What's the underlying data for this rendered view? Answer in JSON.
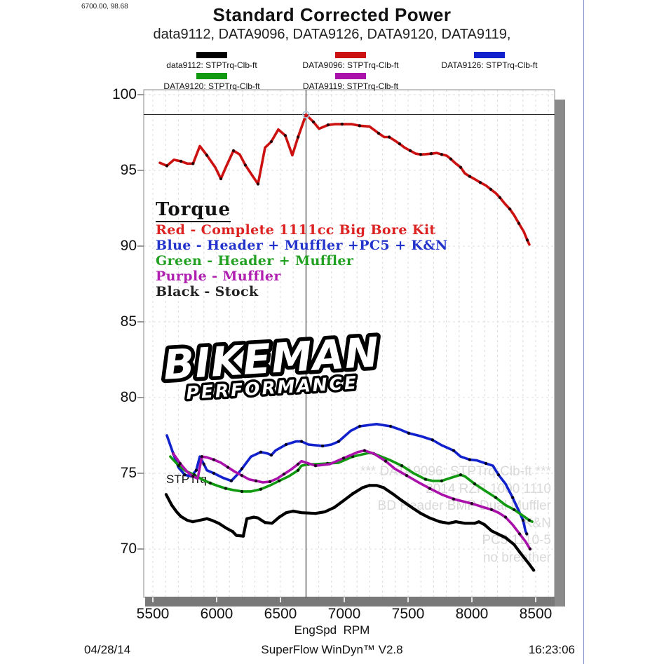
{
  "header": {
    "cursor_readout": "6700.00, 98.68",
    "title": "Standard Corrected Power",
    "subtitle": "data9112, DATA9096, DATA9126, DATA9120, DATA9119,"
  },
  "legend": {
    "items": [
      {
        "label": "data9112: STPTrq-Clb-ft",
        "color": "#000000"
      },
      {
        "label": "DATA9096: STPTrq-Clb-ft",
        "color": "#cc1111"
      },
      {
        "label": "DATA9126: STPTrq-Clb-ft",
        "color": "#1122cc"
      },
      {
        "label": "DATA9120: STPTrq-Clb-ft",
        "color": "#119911"
      },
      {
        "label": "DATA9119: STPTrq-Clb-ft",
        "color": "#aa11aa"
      }
    ]
  },
  "annotations": {
    "heading": "Torque",
    "lines": [
      {
        "label": "Red - Complete 1111cc Big Bore Kit",
        "color": "#dd2222"
      },
      {
        "label": "Blue - Header + Muffler +PC5 + K&N",
        "color": "#2233cc"
      },
      {
        "label": "Green - Header + Muffler",
        "color": "#22a022"
      },
      {
        "label": "Purple - Muffler",
        "color": "#b020b0"
      },
      {
        "label": "Black - Stock",
        "color": "#222222"
      }
    ]
  },
  "logo": {
    "line1": "BIKEMAN",
    "line2": "PERFORMANCE"
  },
  "series_label": "STPTrq",
  "watermark": {
    "lines": [
      "*** DATA9096: STPTrq-Clb-ft ***",
      "2014 RZR 1000 1110",
      "BD Header BMP Dual Muffler",
      "K&N",
      "PC5 1110-5",
      "no breather"
    ]
  },
  "footer": {
    "date": "04/28/14",
    "app": "SuperFlow WinDyn™ V2.8",
    "time": "16:23:06"
  },
  "chart_data": {
    "type": "line",
    "title": "Standard Corrected Power",
    "xlabel": "EngSpd  RPM",
    "ylabel": "STPTrq-Clb-ft",
    "xlim": [
      5430,
      8650
    ],
    "ylim": [
      66.8,
      100.3
    ],
    "x_ticks": [
      5500,
      6000,
      6500,
      7000,
      7500,
      8000,
      8500
    ],
    "y_ticks": [
      70,
      75,
      80,
      85,
      90,
      95,
      100
    ],
    "grid": true,
    "legend_position": "top",
    "crosshair": {
      "x": 6700,
      "y": 98.68
    },
    "series": [
      {
        "name": "DATA9096: STPTrq-Clb-ft",
        "color": "#cc1111",
        "marker_color": "#2a0000",
        "width": 3.6,
        "points": [
          [
            5555,
            95.5
          ],
          [
            5610,
            95.3
          ],
          [
            5665,
            95.7
          ],
          [
            5720,
            95.6
          ],
          [
            5770,
            95.45
          ],
          [
            5815,
            95.45
          ],
          [
            5868,
            96.6
          ],
          [
            5923,
            96.0
          ],
          [
            5989,
            95.2
          ],
          [
            6033,
            94.45
          ],
          [
            6077,
            95.3
          ],
          [
            6132,
            96.3
          ],
          [
            6181,
            96.05
          ],
          [
            6225,
            95.35
          ],
          [
            6280,
            94.65
          ],
          [
            6324,
            94.1
          ],
          [
            6379,
            96.5
          ],
          [
            6428,
            96.9
          ],
          [
            6483,
            97.7
          ],
          [
            6538,
            97.3
          ],
          [
            6593,
            96.0
          ],
          [
            6638,
            97.2
          ],
          [
            6700,
            98.68
          ],
          [
            6758,
            98.2
          ],
          [
            6802,
            97.75
          ],
          [
            6873,
            98.0
          ],
          [
            6928,
            98.05
          ],
          [
            6983,
            98.05
          ],
          [
            7060,
            98.05
          ],
          [
            7120,
            97.95
          ],
          [
            7198,
            97.9
          ],
          [
            7269,
            97.45
          ],
          [
            7313,
            97.2
          ],
          [
            7352,
            97.2
          ],
          [
            7390,
            97.0
          ],
          [
            7434,
            96.75
          ],
          [
            7473,
            96.5
          ],
          [
            7517,
            96.3
          ],
          [
            7560,
            96.1
          ],
          [
            7599,
            96.05
          ],
          [
            7637,
            96.07
          ],
          [
            7681,
            96.1
          ],
          [
            7725,
            96.15
          ],
          [
            7764,
            96.05
          ],
          [
            7802,
            95.97
          ],
          [
            7835,
            95.75
          ],
          [
            7874,
            95.45
          ],
          [
            7912,
            95.2
          ],
          [
            7945,
            94.8
          ],
          [
            7983,
            94.6
          ],
          [
            8027,
            94.4
          ],
          [
            8066,
            94.2
          ],
          [
            8110,
            94.0
          ],
          [
            8148,
            93.75
          ],
          [
            8187,
            93.5
          ],
          [
            8220,
            93.2
          ],
          [
            8258,
            92.8
          ],
          [
            8297,
            92.45
          ],
          [
            8330,
            92.05
          ],
          [
            8368,
            91.5
          ],
          [
            8407,
            90.95
          ],
          [
            8434,
            90.4
          ],
          [
            8450,
            90.1
          ]
        ]
      },
      {
        "name": "DATA9126: STPTrq-Clb-ft",
        "color": "#1122cc",
        "marker_color": "#000028",
        "width": 3.6,
        "points": [
          [
            5610,
            77.5
          ],
          [
            5660,
            76.3
          ],
          [
            5700,
            75.4
          ],
          [
            5750,
            74.9
          ],
          [
            5800,
            74.8
          ],
          [
            5840,
            75.2
          ],
          [
            5868,
            76.1
          ],
          [
            5900,
            75.6
          ],
          [
            5923,
            75.2
          ],
          [
            5978,
            75.0
          ],
          [
            6050,
            74.7
          ],
          [
            6115,
            74.5
          ],
          [
            6160,
            74.9
          ],
          [
            6198,
            75.3
          ],
          [
            6269,
            76.1
          ],
          [
            6346,
            76.4
          ],
          [
            6401,
            76.3
          ],
          [
            6428,
            76.2
          ],
          [
            6461,
            76.5
          ],
          [
            6544,
            76.9
          ],
          [
            6621,
            77.1
          ],
          [
            6665,
            77.1
          ],
          [
            6720,
            76.9
          ],
          [
            6830,
            76.8
          ],
          [
            6900,
            76.9
          ],
          [
            6956,
            77.1
          ],
          [
            7050,
            77.8
          ],
          [
            7121,
            78.1
          ],
          [
            7253,
            78.25
          ],
          [
            7363,
            78.1
          ],
          [
            7434,
            77.9
          ],
          [
            7505,
            77.65
          ],
          [
            7600,
            77.45
          ],
          [
            7692,
            77.2
          ],
          [
            7763,
            76.85
          ],
          [
            7857,
            76.5
          ],
          [
            7912,
            76.1
          ],
          [
            7983,
            75.9
          ],
          [
            8038,
            75.85
          ],
          [
            8110,
            75.65
          ],
          [
            8165,
            75.5
          ],
          [
            8209,
            74.9
          ],
          [
            8264,
            74.3
          ],
          [
            8319,
            73.4
          ],
          [
            8363,
            72.6
          ],
          [
            8401,
            71.9
          ],
          [
            8420,
            71.2
          ],
          [
            8430,
            71.0
          ]
        ]
      },
      {
        "name": "DATA9120: STPTrq-Clb-ft",
        "color": "#119911",
        "marker_color": "#002200",
        "width": 3.6,
        "points": [
          [
            5637,
            76.1
          ],
          [
            5703,
            75.5
          ],
          [
            5758,
            75.15
          ],
          [
            5824,
            74.9
          ],
          [
            5884,
            74.6
          ],
          [
            5950,
            74.35
          ],
          [
            6016,
            74.15
          ],
          [
            6071,
            74.0
          ],
          [
            6126,
            73.9
          ],
          [
            6198,
            73.8
          ],
          [
            6269,
            73.8
          ],
          [
            6346,
            73.95
          ],
          [
            6418,
            74.2
          ],
          [
            6490,
            74.5
          ],
          [
            6566,
            74.8
          ],
          [
            6638,
            75.2
          ],
          [
            6665,
            75.5
          ],
          [
            6720,
            75.6
          ],
          [
            6775,
            75.6
          ],
          [
            6868,
            75.65
          ],
          [
            6956,
            75.7
          ],
          [
            7066,
            76.1
          ],
          [
            7198,
            76.35
          ],
          [
            7231,
            76.3
          ],
          [
            7363,
            75.85
          ],
          [
            7451,
            75.5
          ],
          [
            7544,
            75.0
          ],
          [
            7637,
            74.6
          ],
          [
            7692,
            74.5
          ],
          [
            7763,
            74.5
          ],
          [
            7835,
            74.7
          ],
          [
            7912,
            74.9
          ],
          [
            7945,
            74.8
          ],
          [
            8022,
            74.3
          ],
          [
            8094,
            73.9
          ],
          [
            8187,
            73.4
          ],
          [
            8264,
            72.9
          ],
          [
            8330,
            72.6
          ],
          [
            8400,
            72.2
          ],
          [
            8450,
            71.9
          ],
          [
            8473,
            71.8
          ]
        ]
      },
      {
        "name": "DATA9119: STPTrq-Clb-ft",
        "color": "#aa11aa",
        "marker_color": "#260026",
        "width": 3.6,
        "points": [
          [
            5660,
            76.3
          ],
          [
            5714,
            75.65
          ],
          [
            5769,
            75.1
          ],
          [
            5813,
            74.8
          ],
          [
            5851,
            74.65
          ],
          [
            5884,
            76.1
          ],
          [
            5923,
            76.05
          ],
          [
            5978,
            75.9
          ],
          [
            6033,
            75.7
          ],
          [
            6088,
            75.4
          ],
          [
            6143,
            75.1
          ],
          [
            6198,
            74.85
          ],
          [
            6253,
            74.6
          ],
          [
            6308,
            74.5
          ],
          [
            6363,
            74.4
          ],
          [
            6418,
            74.45
          ],
          [
            6473,
            74.65
          ],
          [
            6528,
            74.95
          ],
          [
            6583,
            75.25
          ],
          [
            6638,
            75.6
          ],
          [
            6665,
            75.8
          ],
          [
            6775,
            75.5
          ],
          [
            6885,
            75.6
          ],
          [
            6995,
            76.0
          ],
          [
            7105,
            76.4
          ],
          [
            7159,
            76.5
          ],
          [
            7231,
            76.3
          ],
          [
            7324,
            75.8
          ],
          [
            7396,
            75.3
          ],
          [
            7489,
            74.85
          ],
          [
            7582,
            74.4
          ],
          [
            7670,
            74.0
          ],
          [
            7763,
            73.6
          ],
          [
            7857,
            73.3
          ],
          [
            7929,
            73.15
          ],
          [
            8000,
            73.0
          ],
          [
            8094,
            72.75
          ],
          [
            8154,
            72.6
          ],
          [
            8209,
            72.4
          ],
          [
            8264,
            72.1
          ],
          [
            8319,
            71.6
          ],
          [
            8374,
            71.0
          ],
          [
            8420,
            70.5
          ],
          [
            8456,
            70.0
          ]
        ]
      },
      {
        "name": "data9112: STPTrq-Clb-ft",
        "color": "#000000",
        "marker_color": "#000000",
        "width": 4.2,
        "points": [
          [
            5604,
            73.6
          ],
          [
            5648,
            72.9
          ],
          [
            5687,
            72.45
          ],
          [
            5720,
            72.15
          ],
          [
            5769,
            71.9
          ],
          [
            5813,
            71.8
          ],
          [
            5868,
            71.9
          ],
          [
            5923,
            72.0
          ],
          [
            5962,
            71.9
          ],
          [
            6016,
            71.7
          ],
          [
            6071,
            71.4
          ],
          [
            6126,
            71.15
          ],
          [
            6154,
            70.9
          ],
          [
            6209,
            70.85
          ],
          [
            6236,
            72.0
          ],
          [
            6291,
            72.1
          ],
          [
            6324,
            72.05
          ],
          [
            6379,
            71.75
          ],
          [
            6434,
            71.7
          ],
          [
            6490,
            72.1
          ],
          [
            6545,
            72.4
          ],
          [
            6600,
            72.5
          ],
          [
            6665,
            72.4
          ],
          [
            6775,
            72.35
          ],
          [
            6846,
            72.45
          ],
          [
            6923,
            72.75
          ],
          [
            6995,
            73.2
          ],
          [
            7066,
            73.65
          ],
          [
            7143,
            74.05
          ],
          [
            7198,
            74.2
          ],
          [
            7253,
            74.2
          ],
          [
            7308,
            74.05
          ],
          [
            7379,
            73.65
          ],
          [
            7451,
            73.2
          ],
          [
            7528,
            72.75
          ],
          [
            7600,
            72.35
          ],
          [
            7670,
            72.05
          ],
          [
            7747,
            71.8
          ],
          [
            7818,
            71.7
          ],
          [
            7874,
            71.8
          ],
          [
            7945,
            71.7
          ],
          [
            8022,
            71.7
          ],
          [
            8055,
            71.8
          ],
          [
            8100,
            71.6
          ],
          [
            8154,
            71.2
          ],
          [
            8264,
            70.75
          ],
          [
            8330,
            70.3
          ],
          [
            8374,
            69.8
          ],
          [
            8440,
            69.1
          ],
          [
            8484,
            68.6
          ]
        ]
      }
    ]
  }
}
